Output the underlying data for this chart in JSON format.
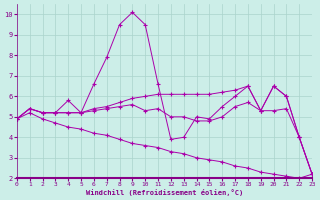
{
  "xlabel": "Windchill (Refroidissement éolien,°C)",
  "background_color": "#cceee8",
  "line_color": "#aa00aa",
  "grid_color": "#aad4cc",
  "xlim": [
    0,
    23
  ],
  "ylim": [
    2,
    10.5
  ],
  "xticks": [
    0,
    1,
    2,
    3,
    4,
    5,
    6,
    7,
    8,
    9,
    10,
    11,
    12,
    13,
    14,
    15,
    16,
    17,
    18,
    19,
    20,
    21,
    22,
    23
  ],
  "yticks": [
    2,
    3,
    4,
    5,
    6,
    7,
    8,
    9,
    10
  ],
  "lines": [
    {
      "x": [
        0,
        1,
        2,
        3,
        4,
        5,
        6,
        7,
        8,
        9,
        10,
        11,
        12,
        13,
        14,
        15,
        16,
        17,
        18,
        19,
        20,
        21,
        22,
        23
      ],
      "y": [
        4.9,
        5.4,
        5.2,
        5.2,
        5.8,
        5.2,
        6.6,
        7.9,
        9.5,
        10.1,
        9.5,
        6.6,
        3.9,
        4.0,
        5.0,
        4.9,
        5.5,
        6.0,
        6.5,
        5.3,
        6.5,
        6.0,
        4.0,
        2.2
      ]
    },
    {
      "x": [
        0,
        1,
        2,
        3,
        4,
        5,
        6,
        7,
        8,
        9,
        10,
        11,
        12,
        13,
        14,
        15,
        16,
        17,
        18,
        19,
        20,
        21,
        22,
        23
      ],
      "y": [
        4.9,
        5.4,
        5.2,
        5.2,
        5.2,
        5.2,
        5.4,
        5.5,
        5.7,
        5.9,
        6.0,
        6.1,
        6.1,
        6.1,
        6.1,
        6.1,
        6.2,
        6.3,
        6.5,
        5.3,
        6.5,
        6.0,
        4.0,
        2.2
      ]
    },
    {
      "x": [
        0,
        1,
        2,
        3,
        4,
        5,
        6,
        7,
        8,
        9,
        10,
        11,
        12,
        13,
        14,
        15,
        16,
        17,
        18,
        19,
        20,
        21,
        22,
        23
      ],
      "y": [
        4.9,
        5.4,
        5.2,
        5.2,
        5.2,
        5.2,
        5.3,
        5.4,
        5.5,
        5.6,
        5.3,
        5.4,
        5.0,
        5.0,
        4.8,
        4.8,
        5.0,
        5.5,
        5.7,
        5.3,
        5.3,
        5.4,
        4.0,
        2.2
      ]
    },
    {
      "x": [
        0,
        1,
        2,
        3,
        4,
        5,
        6,
        7,
        8,
        9,
        10,
        11,
        12,
        13,
        14,
        15,
        16,
        17,
        18,
        19,
        20,
        21,
        22,
        23
      ],
      "y": [
        4.9,
        5.2,
        4.9,
        4.7,
        4.5,
        4.4,
        4.2,
        4.1,
        3.9,
        3.7,
        3.6,
        3.5,
        3.3,
        3.2,
        3.0,
        2.9,
        2.8,
        2.6,
        2.5,
        2.3,
        2.2,
        2.1,
        2.0,
        2.2
      ]
    }
  ]
}
